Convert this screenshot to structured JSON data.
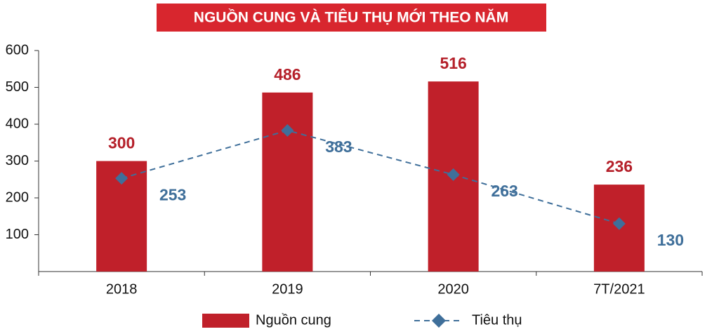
{
  "chart_data": {
    "type": "bar",
    "title": "NGUỒN CUNG VÀ TIÊU THỤ MỚI THEO NĂM",
    "categories": [
      "2018",
      "2019",
      "2020",
      "7T/2021"
    ],
    "series": [
      {
        "name": "Nguồn cung",
        "type": "bar",
        "color": "#c0202a",
        "label_color": "#b5202a",
        "values": [
          300,
          486,
          516,
          236
        ]
      },
      {
        "name": "Tiêu thụ",
        "type": "line",
        "color": "#3f6f9a",
        "label_color": "#3f6f9a",
        "values": [
          253,
          383,
          263,
          130
        ]
      }
    ],
    "ylim": [
      0,
      600
    ],
    "yticks": [
      100,
      200,
      300,
      400,
      500,
      600
    ],
    "grid": false,
    "legend": "bottom"
  }
}
